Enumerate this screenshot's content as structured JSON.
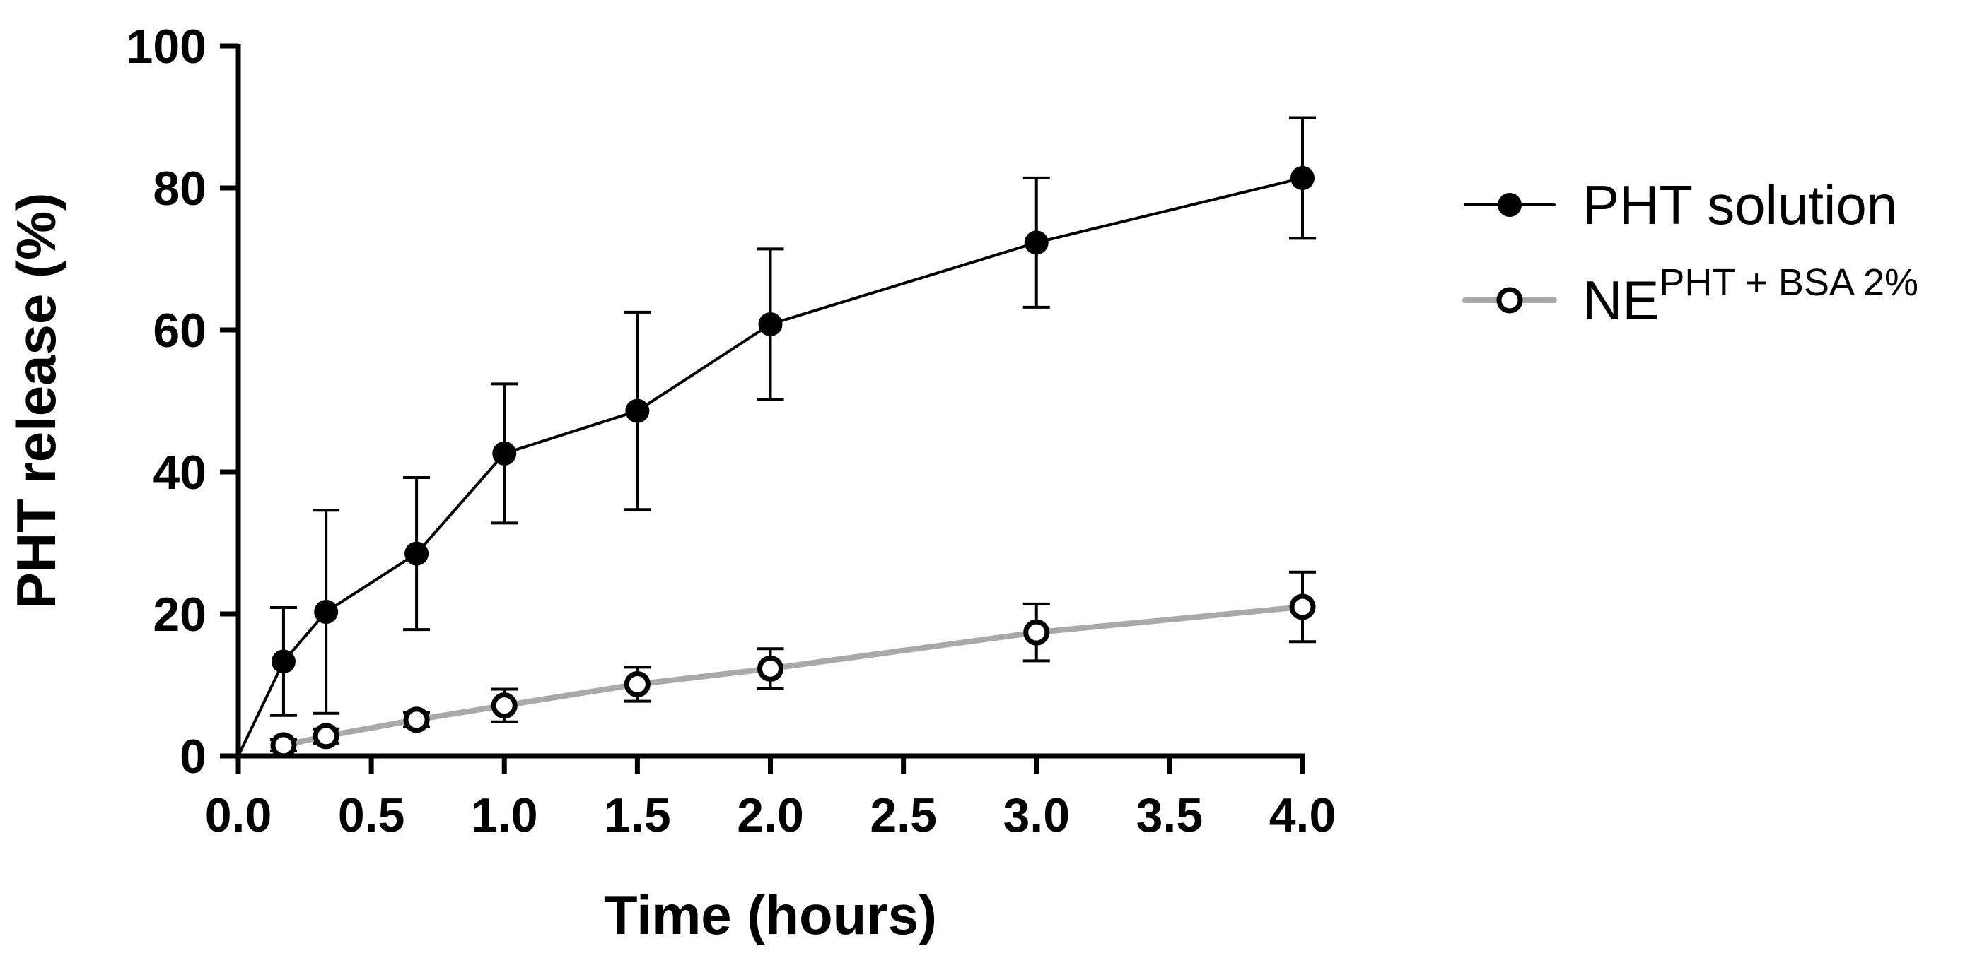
{
  "chart_data": {
    "type": "line",
    "title": "",
    "xlabel": "Time (hours)",
    "ylabel": "PHT release (%)",
    "xlim": [
      0,
      4
    ],
    "ylim": [
      0,
      100
    ],
    "xticks": [
      "0.0",
      "0.5",
      "1.0",
      "1.5",
      "2.0",
      "2.5",
      "3.0",
      "3.5",
      "4.0"
    ],
    "xtick_values": [
      0,
      0.5,
      1,
      1.5,
      2,
      2.5,
      3,
      3.5,
      4
    ],
    "yticks": [
      "0",
      "20",
      "40",
      "60",
      "80",
      "100"
    ],
    "ytick_values": [
      0,
      20,
      40,
      60,
      80,
      100
    ],
    "grid": false,
    "legend_position": "right",
    "series": [
      {
        "name": "PHT solution",
        "legend_main": "PHT solution",
        "legend_sup": "",
        "color": "#000000",
        "marker": "filled-circle",
        "line_start": [
          0,
          0
        ],
        "x": [
          0.17,
          0.33,
          0.67,
          1.0,
          1.5,
          2.0,
          3.0,
          4.0
        ],
        "y": [
          13.3,
          20.3,
          28.5,
          42.6,
          48.6,
          60.8,
          72.3,
          81.4
        ],
        "err": [
          7.6,
          14.3,
          10.7,
          9.8,
          13.9,
          10.6,
          9.1,
          8.5
        ]
      },
      {
        "name": "NE PHT + BSA 2%",
        "legend_main": "NE",
        "legend_sup": "PHT + BSA 2%",
        "color": "#a9a9a9",
        "marker": "open-circle",
        "marker_edge": "#000000",
        "x": [
          0.17,
          0.33,
          0.67,
          1.0,
          1.5,
          2.0,
          3.0,
          4.0
        ],
        "y": [
          1.5,
          2.8,
          5.1,
          7.1,
          10.1,
          12.3,
          17.4,
          21.0
        ],
        "err": [
          0.8,
          1.0,
          1.0,
          2.3,
          2.4,
          2.8,
          4.0,
          4.9
        ]
      }
    ]
  }
}
